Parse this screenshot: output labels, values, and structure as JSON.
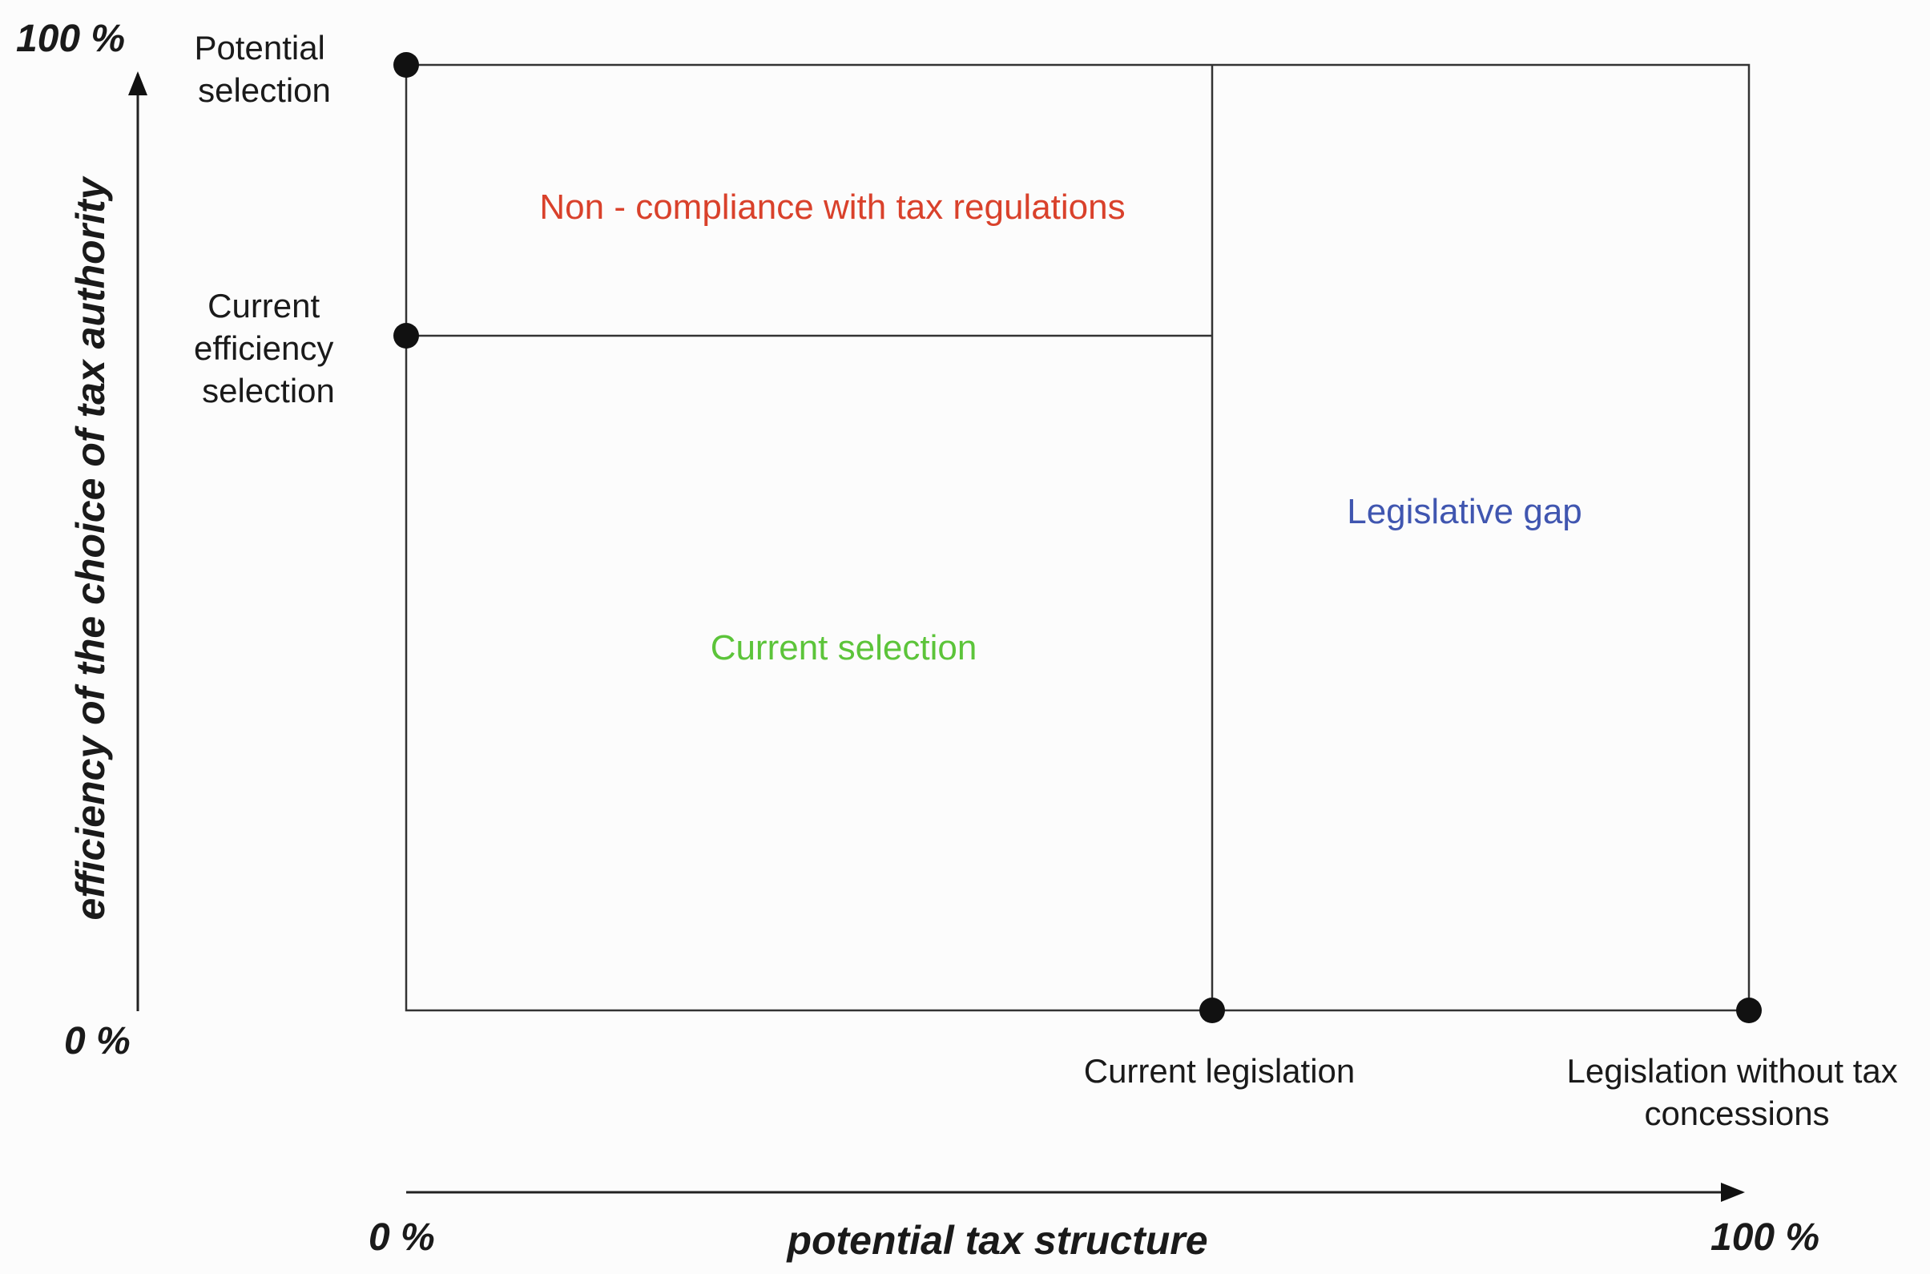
{
  "x_axis": {
    "title": "potential tax structure",
    "min_label": "0 %",
    "max_label": "100 %"
  },
  "y_axis": {
    "title": "efficiency of the choice of tax authority",
    "min_label": "0 %",
    "max_label": "100 %"
  },
  "points": {
    "potential_selection": [
      "Potential",
      "selection"
    ],
    "current_efficiency_selection": [
      "Current",
      "efficiency",
      "selection"
    ],
    "current_legislation": [
      "Current legislation"
    ],
    "legislation_without_concessions": [
      "Legislation without tax",
      "concessions"
    ]
  },
  "regions": {
    "non_compliance": {
      "label": "Non - compliance with tax regulations",
      "color": "#d9412b"
    },
    "current_selection": {
      "label": "Current selection",
      "color": "#5cc43a"
    },
    "legislative_gap": {
      "label": "Legislative gap",
      "color": "#4056b0"
    }
  },
  "colors": {
    "line": "#333333",
    "dot": "#111111",
    "text": "#1a1a1a"
  }
}
